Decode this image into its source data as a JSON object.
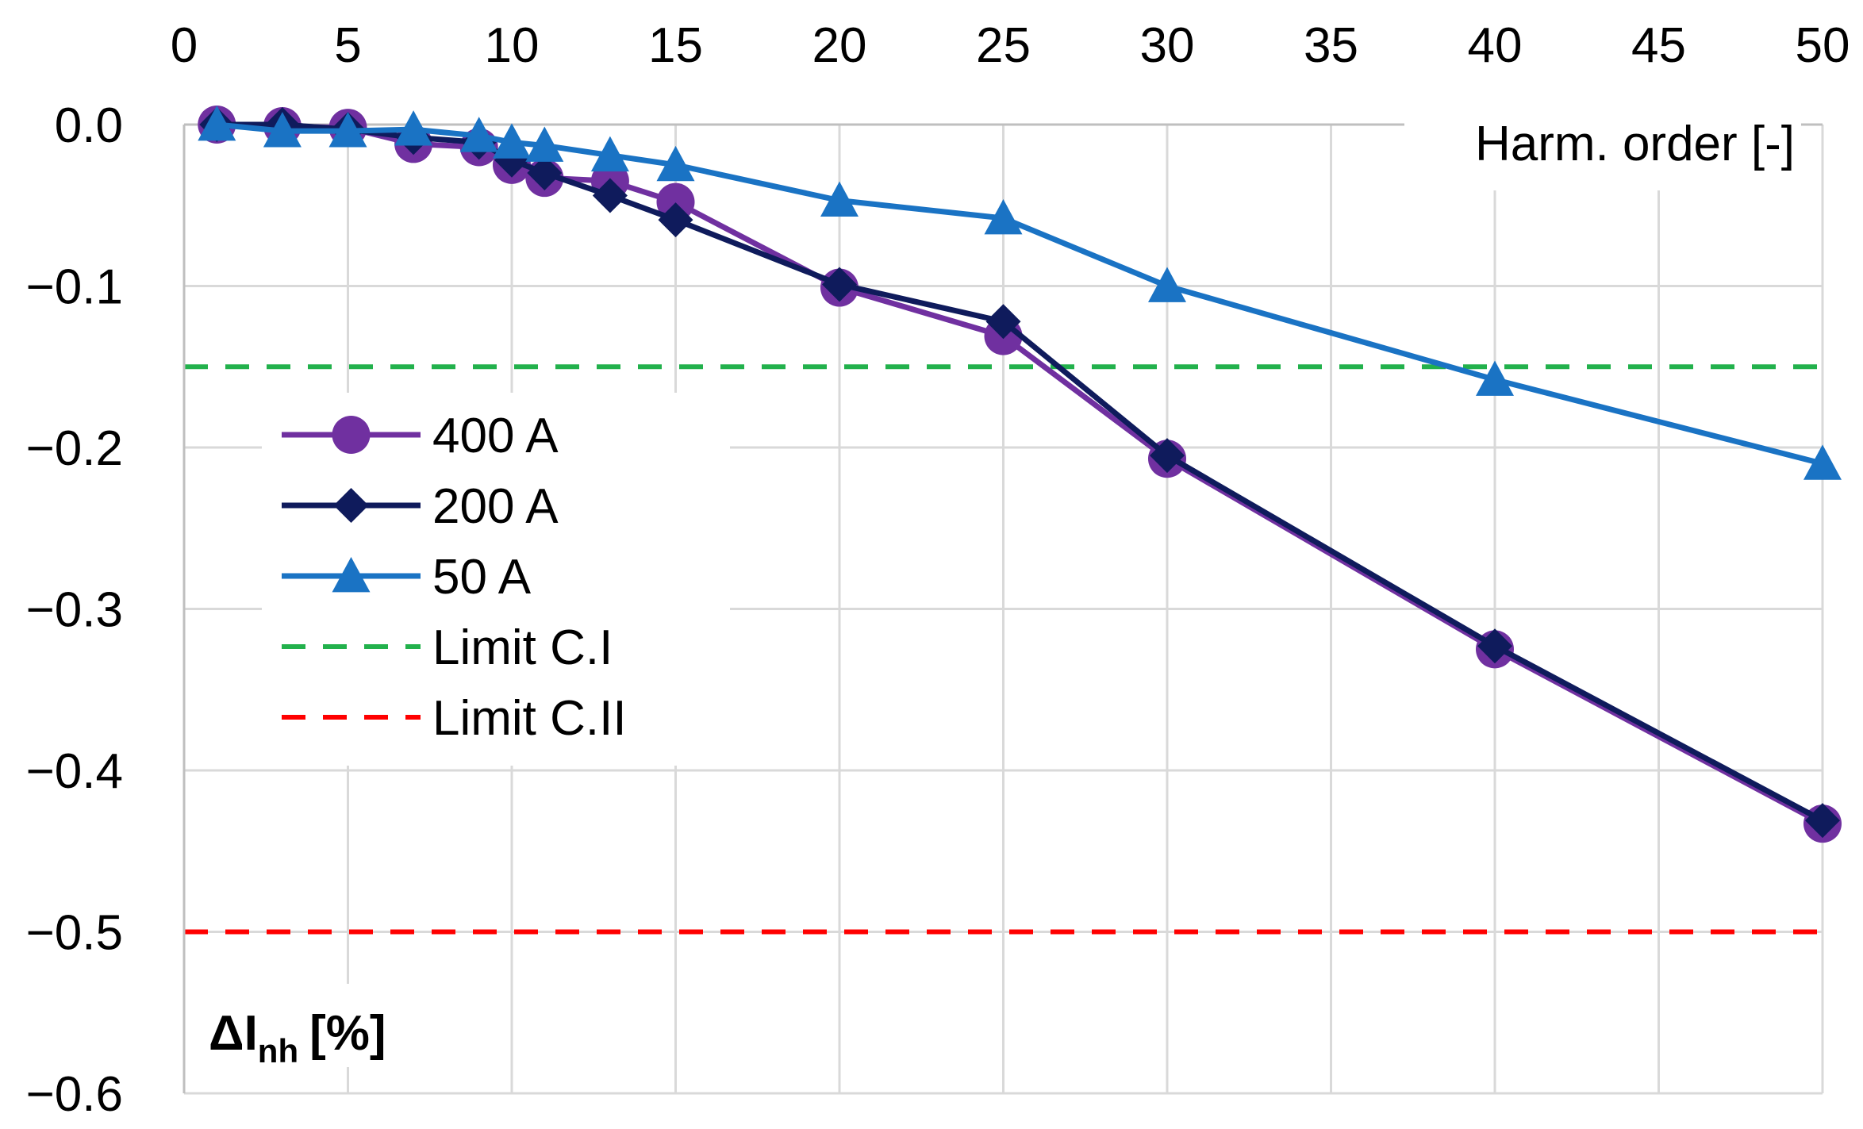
{
  "chart_data": {
    "type": "line",
    "title": "",
    "xlabel": "Harm. order [-]",
    "ylabel": "ΔI",
    "ylabel_sub": "nh",
    "ylabel_unit": "[%]",
    "xlim": [
      0,
      50
    ],
    "ylim": [
      -0.6,
      0.0
    ],
    "grid": true,
    "x_axis_position": "top",
    "xticks": [
      "0",
      "5",
      "10",
      "15",
      "20",
      "25",
      "30",
      "35",
      "40",
      "45",
      "50"
    ],
    "yticks": [
      "0.0",
      "−0.1",
      "−0.2",
      "−0.3",
      "−0.4",
      "−0.5",
      "−0.6"
    ],
    "legend_position": "left-middle",
    "series": [
      {
        "name": "400 A",
        "color": "#7030a0",
        "marker": "circle",
        "x": [
          1,
          3,
          5,
          7,
          9,
          10,
          11,
          13,
          15,
          20,
          25,
          30,
          40,
          50
        ],
        "values": [
          0.0,
          -0.001,
          -0.002,
          -0.012,
          -0.014,
          -0.025,
          -0.033,
          -0.035,
          -0.048,
          -0.101,
          -0.131,
          -0.207,
          -0.325,
          -0.433
        ]
      },
      {
        "name": "200 A",
        "color": "#0f1b5c",
        "marker": "diamond",
        "x": [
          1,
          3,
          5,
          7,
          9,
          10,
          11,
          13,
          15,
          20,
          25,
          30,
          40,
          50
        ],
        "values": [
          0.0,
          0.0,
          -0.003,
          -0.008,
          -0.011,
          -0.022,
          -0.03,
          -0.044,
          -0.059,
          -0.099,
          -0.122,
          -0.205,
          -0.323,
          -0.431
        ]
      },
      {
        "name": "50 A",
        "color": "#1a73c4",
        "marker": "triangle",
        "x": [
          1,
          3,
          5,
          7,
          9,
          10,
          11,
          13,
          15,
          20,
          25,
          30,
          40,
          50
        ],
        "values": [
          0.0,
          -0.004,
          -0.004,
          -0.003,
          -0.007,
          -0.011,
          -0.013,
          -0.019,
          -0.025,
          -0.047,
          -0.058,
          -0.1,
          -0.158,
          -0.21
        ]
      },
      {
        "name": "Limit C.I",
        "color": "#22b14c",
        "style": "dashed",
        "x": [
          0,
          50
        ],
        "values": [
          -0.15,
          -0.15
        ]
      },
      {
        "name": "Limit C.II",
        "color": "#ff0000",
        "style": "dashed",
        "x": [
          0,
          50
        ],
        "values": [
          -0.5,
          -0.5
        ]
      }
    ]
  }
}
